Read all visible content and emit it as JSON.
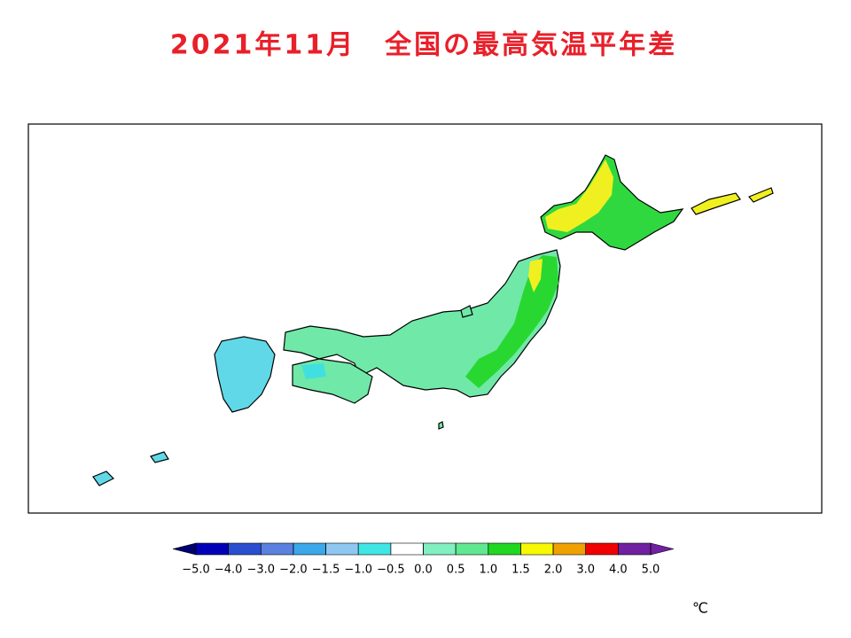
{
  "title": "2021年11月　全国の最高気温平年差",
  "colorbar": {
    "ticks": [
      {
        "value": -5.0,
        "label": "−5.0"
      },
      {
        "value": -4.0,
        "label": "−4.0"
      },
      {
        "value": -3.0,
        "label": "−3.0"
      },
      {
        "value": -2.0,
        "label": "−2.0"
      },
      {
        "value": -1.5,
        "label": "−1.5"
      },
      {
        "value": -1.0,
        "label": "−1.0"
      },
      {
        "value": -0.5,
        "label": "−0.5"
      },
      {
        "value": 0.0,
        "label": "0.0"
      },
      {
        "value": 0.5,
        "label": "0.5"
      },
      {
        "value": 1.0,
        "label": "1.0"
      },
      {
        "value": 1.5,
        "label": "1.5"
      },
      {
        "value": 2.0,
        "label": "2.0"
      },
      {
        "value": 3.0,
        "label": "3.0"
      },
      {
        "value": 4.0,
        "label": "4.0"
      },
      {
        "value": 5.0,
        "label": "5.0"
      }
    ],
    "colors": [
      "#000070",
      "#0000b8",
      "#2a4ed0",
      "#5a80e0",
      "#3aa8ea",
      "#8ec8f2",
      "#40e6e6",
      "#ffffff",
      "#80f0c0",
      "#60e890",
      "#20d820",
      "#f8f800",
      "#f0a000",
      "#f00000",
      "#7020a0"
    ],
    "unit": "℃"
  }
}
